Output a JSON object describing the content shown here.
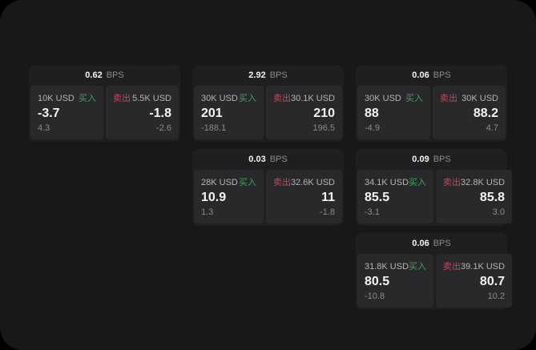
{
  "theme": {
    "outside_bg": "#000000",
    "screen_bg": "#18181a",
    "card_bg": "#1f1f21",
    "panel_bg": "#29292c",
    "text_primary": "#f4f4f6",
    "text_secondary": "#b4b4b9",
    "text_muted": "#8b8b90",
    "buy_green": "#3aa55e",
    "sell_red": "#c2485d"
  },
  "labels": {
    "bps_unit": "BPS",
    "buy": "买入",
    "sell": "卖出"
  },
  "cards": [
    {
      "row": 1,
      "col": 1,
      "bps": "0.62",
      "buy": {
        "size": "10K USD",
        "value": "-3.7",
        "delta": "4.3"
      },
      "sell": {
        "size": "5.5K USD",
        "value": "-1.8",
        "delta": "-2.6"
      }
    },
    {
      "row": 1,
      "col": 2,
      "bps": "2.92",
      "buy": {
        "size": "30K USD",
        "value": "201",
        "delta": "-188.1"
      },
      "sell": {
        "size": "30.1K USD",
        "value": "210",
        "delta": "196.5"
      }
    },
    {
      "row": 1,
      "col": 3,
      "bps": "0.06",
      "buy": {
        "size": "30K USD",
        "value": "88",
        "delta": "-4.9"
      },
      "sell": {
        "size": "30K USD",
        "value": "88.2",
        "delta": "4.7"
      }
    },
    {
      "row": 2,
      "col": 2,
      "bps": "0.03",
      "buy": {
        "size": "28K USD",
        "value": "10.9",
        "delta": "1.3"
      },
      "sell": {
        "size": "32.6K USD",
        "value": "11",
        "delta": "-1.8"
      }
    },
    {
      "row": 2,
      "col": 3,
      "bps": "0.09",
      "buy": {
        "size": "34.1K USD",
        "value": "85.5",
        "delta": "-3.1"
      },
      "sell": {
        "size": "32.8K USD",
        "value": "85.8",
        "delta": "3.0"
      }
    },
    {
      "row": 3,
      "col": 3,
      "bps": "0.06",
      "buy": {
        "size": "31.8K USD",
        "value": "80.5",
        "delta": "-10.8"
      },
      "sell": {
        "size": "39.1K USD",
        "value": "80.7",
        "delta": "10.2"
      }
    }
  ]
}
